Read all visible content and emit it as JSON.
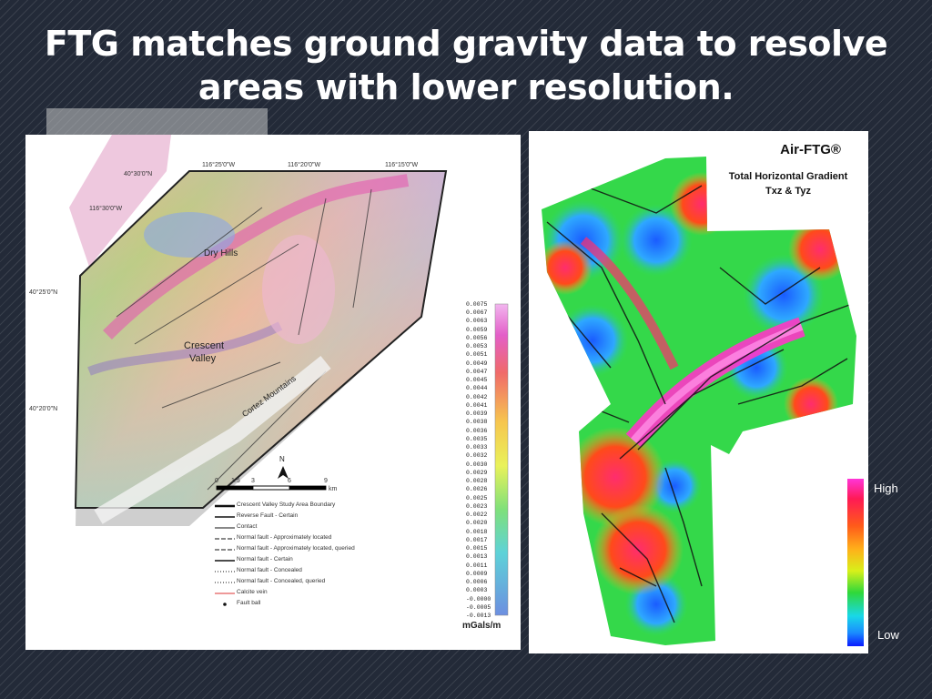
{
  "slide": {
    "title_line1": "FTG matches ground gravity data to resolve",
    "title_line2": "areas with lower resolution."
  },
  "left_map": {
    "coords_top": [
      "116°25'0\"W",
      "116°20'0\"W",
      "116°15'0\"W"
    ],
    "coords_top_left": [
      "40°30'0\"N",
      "116°30'0\"W"
    ],
    "coords_left": [
      "40°25'0\"N",
      "40°20'0\"N"
    ],
    "place_labels": [
      "Dry Hills",
      "Crescent",
      "Valley",
      "Cortez Mountains"
    ],
    "north_arrow": "N",
    "scale_bar": {
      "ticks": [
        "0",
        "1.5",
        "3",
        "6",
        "9"
      ],
      "unit": "km"
    },
    "legend": [
      "Crescent Valley Study Area Boundary",
      "Reverse Fault - Certain",
      "Contact",
      "Normal fault - Approximately located",
      "Normal fault - Approximately located, queried",
      "Normal fault - Certain",
      "Normal fault - Concealed",
      "Normal fault - Concealed, queried",
      "Calcite vein",
      "Fault ball"
    ],
    "colorbar_values": [
      "0.0075",
      "0.0067",
      "0.0063",
      "0.0059",
      "0.0056",
      "0.0053",
      "0.0051",
      "0.0049",
      "0.0047",
      "0.0045",
      "0.0044",
      "0.0042",
      "0.0041",
      "0.0039",
      "0.0038",
      "0.0036",
      "0.0035",
      "0.0033",
      "0.0032",
      "0.0030",
      "0.0029",
      "0.0028",
      "0.0026",
      "0.0025",
      "0.0023",
      "0.0022",
      "0.0020",
      "0.0018",
      "0.0017",
      "0.0015",
      "0.0013",
      "0.0011",
      "0.0009",
      "0.0006",
      "0.0003",
      "-0.0000",
      "-0.0005",
      "-0.0013"
    ],
    "colorbar_unit": "mGals/m"
  },
  "right_map": {
    "title": "Air-FTG®",
    "subtitle_line1": "Total Horizontal Gradient",
    "subtitle_line2": "Txz & Tyz",
    "colorbar_high": "High",
    "colorbar_low": "Low"
  },
  "colors": {
    "background": "#232a38",
    "title_text": "#ffffff"
  }
}
